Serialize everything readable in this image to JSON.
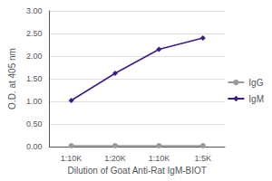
{
  "chart_data": {
    "type": "line",
    "xlabel": "Dilution of Goat Anti-Rat IgM-BIOT",
    "ylabel": "O.D. at 405 nm",
    "categories": [
      "1:10K",
      "1:20K",
      "1:10K",
      "1:5K"
    ],
    "series": [
      {
        "name": "IgG",
        "color": "#999999",
        "marker": "circle",
        "values": [
          0.02,
          0.02,
          0.02,
          0.02
        ]
      },
      {
        "name": "IgM",
        "color": "#3d1a8c",
        "marker": "diamond",
        "values": [
          1.02,
          1.62,
          2.15,
          2.4
        ]
      }
    ],
    "ylim": [
      0.0,
      3.0
    ],
    "yticks": [
      {
        "value": 0,
        "label": "0.00"
      },
      {
        "value": 0.5,
        "label": "0.50"
      },
      {
        "value": 1,
        "label": "1.00"
      },
      {
        "value": 1.5,
        "label": "1.50"
      },
      {
        "value": 2,
        "label": "2.00"
      },
      {
        "value": 2.5,
        "label": "2.50"
      },
      {
        "value": 3,
        "label": "3.00"
      }
    ],
    "grid": true,
    "legend": "right"
  }
}
